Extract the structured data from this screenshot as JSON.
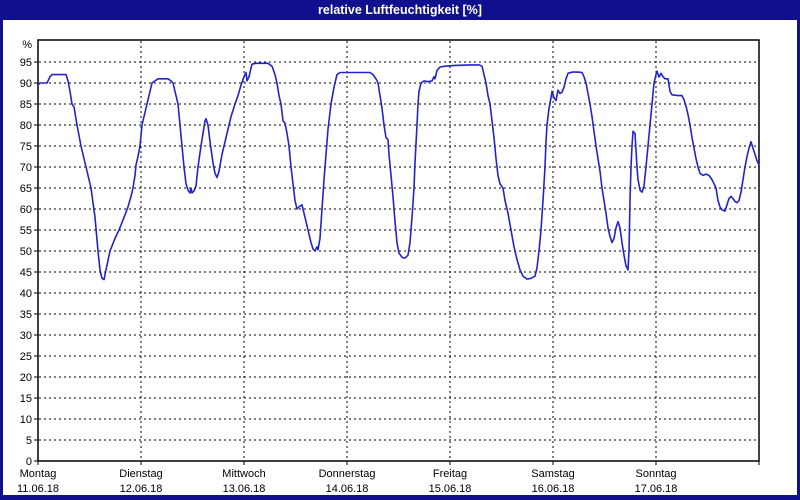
{
  "window": {
    "title": "relative Luftfeuchtigkeit [%]"
  },
  "colors": {
    "titlebar_bg": "#10108e",
    "title_text": "#ffffff",
    "window_border": "#10108e",
    "plot_bg": "#ffffff",
    "grid": "#000000",
    "label": "#000000",
    "line": "#2323cd"
  },
  "chart_data": {
    "type": "line",
    "title": "relative Luftfeuchtigkeit [%]",
    "ylabel": "%",
    "ylim": [
      0,
      95
    ],
    "ytick_step": 5,
    "grid": "dashed",
    "legend_position": "none",
    "x_categories": [
      {
        "day": "Montag",
        "date": "11.06.18"
      },
      {
        "day": "Dienstag",
        "date": "12.06.18"
      },
      {
        "day": "Mittwoch",
        "date": "13.06.18"
      },
      {
        "day": "Donnerstag",
        "date": "14.06.18"
      },
      {
        "day": "Freitag",
        "date": "15.06.18"
      },
      {
        "day": "Samstag",
        "date": "16.06.18"
      },
      {
        "day": "Sonntag",
        "date": "17.06.18"
      }
    ],
    "x_note": "points x = horizontal pixel position on source chart; day boundaries every 103px starting at x=38 (Montag 00:00)",
    "series": [
      {
        "name": "relative Luftfeuchtigkeit",
        "unit": "%",
        "color": "#2323cd",
        "points": [
          [
            38,
            89.5
          ],
          [
            40,
            90
          ],
          [
            47,
            90
          ],
          [
            50,
            91.5
          ],
          [
            52,
            92
          ],
          [
            66,
            92
          ],
          [
            68,
            90.5
          ],
          [
            70,
            88
          ],
          [
            72,
            85
          ],
          [
            74,
            84.3
          ],
          [
            77,
            80
          ],
          [
            81,
            75
          ],
          [
            86,
            70
          ],
          [
            91,
            65
          ],
          [
            95,
            58
          ],
          [
            98,
            50
          ],
          [
            100,
            45.5
          ],
          [
            102,
            43.5
          ],
          [
            104,
            43.2
          ],
          [
            106,
            45.5
          ],
          [
            110,
            50
          ],
          [
            115,
            53
          ],
          [
            119,
            55
          ],
          [
            124,
            58
          ],
          [
            128,
            60.5
          ],
          [
            131,
            63
          ],
          [
            133,
            65
          ],
          [
            135,
            68
          ],
          [
            136,
            70.5
          ],
          [
            138,
            72.5
          ],
          [
            140,
            75
          ],
          [
            142,
            80
          ],
          [
            145,
            83
          ],
          [
            147,
            85
          ],
          [
            150,
            88
          ],
          [
            152,
            90
          ],
          [
            155,
            90.5
          ],
          [
            158,
            91
          ],
          [
            168,
            91
          ],
          [
            171,
            90.5
          ],
          [
            173,
            90
          ],
          [
            176,
            87
          ],
          [
            178,
            85
          ],
          [
            180,
            80
          ],
          [
            182,
            75
          ],
          [
            184,
            70
          ],
          [
            186,
            66
          ],
          [
            188,
            64.5
          ],
          [
            190,
            63.8
          ],
          [
            191,
            65
          ],
          [
            192,
            63.8
          ],
          [
            194,
            64.3
          ],
          [
            196,
            65.5
          ],
          [
            198,
            70
          ],
          [
            201,
            75
          ],
          [
            203,
            78
          ],
          [
            205,
            81
          ],
          [
            206,
            81.5
          ],
          [
            208,
            80
          ],
          [
            210,
            76
          ],
          [
            213,
            71
          ],
          [
            215,
            68.5
          ],
          [
            217,
            67.5
          ],
          [
            219,
            69
          ],
          [
            222,
            73
          ],
          [
            225,
            76
          ],
          [
            228,
            79
          ],
          [
            231,
            82
          ],
          [
            235,
            85
          ],
          [
            238,
            87
          ],
          [
            241,
            89.5
          ],
          [
            244,
            91.5
          ],
          [
            246,
            92.5
          ],
          [
            247,
            90.5
          ],
          [
            249,
            91.5
          ],
          [
            252,
            94.5
          ],
          [
            256,
            94.7
          ],
          [
            268,
            94.7
          ],
          [
            272,
            94
          ],
          [
            275,
            92
          ],
          [
            277,
            90
          ],
          [
            279,
            87
          ],
          [
            281,
            85
          ],
          [
            283,
            81
          ],
          [
            285,
            80.5
          ],
          [
            287,
            78
          ],
          [
            289,
            75
          ],
          [
            291,
            70
          ],
          [
            293,
            66
          ],
          [
            295,
            62
          ],
          [
            297,
            60
          ],
          [
            299,
            60.5
          ],
          [
            302,
            61
          ],
          [
            305,
            58
          ],
          [
            308,
            55
          ],
          [
            311,
            52
          ],
          [
            313,
            50.5
          ],
          [
            315,
            50
          ],
          [
            317,
            51
          ],
          [
            318,
            50.3
          ],
          [
            320,
            53
          ],
          [
            322,
            60
          ],
          [
            324,
            67
          ],
          [
            326,
            73
          ],
          [
            328,
            79
          ],
          [
            331,
            85
          ],
          [
            334,
            89
          ],
          [
            337,
            92
          ],
          [
            340,
            92.5
          ],
          [
            360,
            92.5
          ],
          [
            370,
            92.5
          ],
          [
            373,
            92
          ],
          [
            376,
            91
          ],
          [
            378,
            90
          ],
          [
            380,
            87
          ],
          [
            382,
            84
          ],
          [
            384,
            80
          ],
          [
            386,
            77
          ],
          [
            388,
            76.5
          ],
          [
            389,
            73
          ],
          [
            391,
            68
          ],
          [
            393,
            63
          ],
          [
            395,
            57
          ],
          [
            397,
            52
          ],
          [
            399,
            49.5
          ],
          [
            402,
            48.5
          ],
          [
            405,
            48.3
          ],
          [
            408,
            49
          ],
          [
            410,
            52
          ],
          [
            412,
            58
          ],
          [
            414,
            65
          ],
          [
            415,
            71
          ],
          [
            417,
            80
          ],
          [
            418,
            85
          ],
          [
            419,
            88
          ],
          [
            421,
            90
          ],
          [
            424,
            90.5
          ],
          [
            428,
            90.3
          ],
          [
            432,
            90.5
          ],
          [
            434,
            91.5
          ],
          [
            435,
            91
          ],
          [
            437,
            93
          ],
          [
            440,
            93.8
          ],
          [
            445,
            94
          ],
          [
            455,
            94.2
          ],
          [
            470,
            94.3
          ],
          [
            479,
            94.3
          ],
          [
            482,
            94
          ],
          [
            484,
            92
          ],
          [
            486,
            90
          ],
          [
            488,
            87
          ],
          [
            490,
            85
          ],
          [
            492,
            81
          ],
          [
            494,
            77
          ],
          [
            496,
            72
          ],
          [
            498,
            68
          ],
          [
            500,
            66
          ],
          [
            503,
            65
          ],
          [
            505,
            62
          ],
          [
            508,
            59
          ],
          [
            511,
            55
          ],
          [
            514,
            51
          ],
          [
            517,
            48
          ],
          [
            520,
            45.5
          ],
          [
            523,
            44
          ],
          [
            527,
            43.3
          ],
          [
            531,
            43.5
          ],
          [
            535,
            44
          ],
          [
            537,
            46
          ],
          [
            539,
            50
          ],
          [
            541,
            55
          ],
          [
            543,
            62
          ],
          [
            545,
            70
          ],
          [
            546,
            76
          ],
          [
            547,
            80
          ],
          [
            549,
            84
          ],
          [
            551,
            86.5
          ],
          [
            552,
            88
          ],
          [
            554,
            86.5
          ],
          [
            556,
            85.8
          ],
          [
            558,
            88.3
          ],
          [
            560,
            87.5
          ],
          [
            562,
            87.8
          ],
          [
            564,
            89
          ],
          [
            566,
            91
          ],
          [
            568,
            92.3
          ],
          [
            572,
            92.6
          ],
          [
            578,
            92.6
          ],
          [
            582,
            92.5
          ],
          [
            584,
            91.5
          ],
          [
            586,
            90
          ],
          [
            588,
            87.5
          ],
          [
            590,
            85
          ],
          [
            592,
            82
          ],
          [
            594,
            78.5
          ],
          [
            596,
            75
          ],
          [
            598,
            72
          ],
          [
            600,
            69
          ],
          [
            602,
            65
          ],
          [
            604,
            62
          ],
          [
            606,
            59
          ],
          [
            608,
            55.5
          ],
          [
            610,
            53.5
          ],
          [
            612,
            52
          ],
          [
            614,
            53
          ],
          [
            616,
            55.5
          ],
          [
            618,
            57
          ],
          [
            620,
            55.5
          ],
          [
            622,
            52
          ],
          [
            624,
            49
          ],
          [
            626,
            46.5
          ],
          [
            628,
            45.5
          ],
          [
            629,
            50
          ],
          [
            630,
            62
          ],
          [
            631,
            70
          ],
          [
            632,
            75
          ],
          [
            633,
            78.5
          ],
          [
            635,
            78
          ],
          [
            636,
            74
          ],
          [
            637,
            70
          ],
          [
            638,
            67
          ],
          [
            640,
            64.5
          ],
          [
            642,
            64
          ],
          [
            644,
            65.5
          ],
          [
            646,
            70
          ],
          [
            648,
            75
          ],
          [
            650,
            80
          ],
          [
            652,
            85
          ],
          [
            654,
            90
          ],
          [
            656,
            92
          ],
          [
            657,
            92.8
          ],
          [
            659,
            91.4
          ],
          [
            661,
            92.3
          ],
          [
            663,
            91.5
          ],
          [
            665,
            91
          ],
          [
            668,
            91
          ],
          [
            670,
            88
          ],
          [
            672,
            87.2
          ],
          [
            678,
            87
          ],
          [
            682,
            87
          ],
          [
            684,
            86
          ],
          [
            686,
            84.5
          ],
          [
            688,
            82.5
          ],
          [
            690,
            80
          ],
          [
            692,
            77
          ],
          [
            694,
            74.5
          ],
          [
            696,
            72
          ],
          [
            698,
            70
          ],
          [
            700,
            68.5
          ],
          [
            703,
            68
          ],
          [
            706,
            68.3
          ],
          [
            709,
            68
          ],
          [
            712,
            67
          ],
          [
            714,
            66
          ],
          [
            716,
            65
          ],
          [
            718,
            62
          ],
          [
            720,
            60.5
          ],
          [
            722,
            59.8
          ],
          [
            725,
            59.5
          ],
          [
            727,
            61
          ],
          [
            729,
            62.5
          ],
          [
            731,
            63
          ],
          [
            733,
            62.5
          ],
          [
            735,
            61.8
          ],
          [
            737,
            61.5
          ],
          [
            739,
            62
          ],
          [
            741,
            64
          ],
          [
            743,
            67
          ],
          [
            745,
            70
          ],
          [
            747,
            72.5
          ],
          [
            749,
            74.5
          ],
          [
            751,
            76
          ],
          [
            753,
            74.5
          ],
          [
            755,
            73
          ],
          [
            757,
            71.5
          ],
          [
            759,
            70.5
          ]
        ]
      }
    ]
  }
}
